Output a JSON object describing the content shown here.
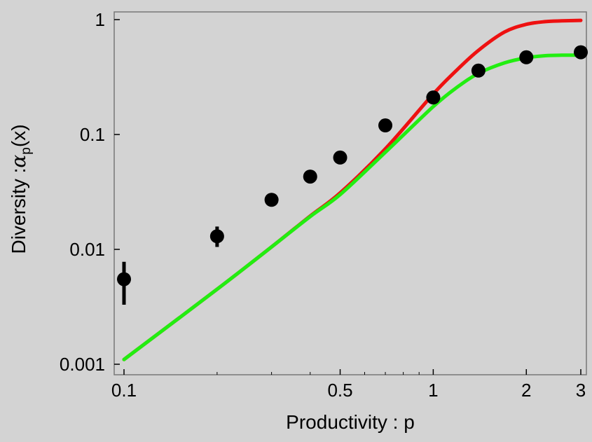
{
  "chart_data": {
    "type": "scatter",
    "title": "",
    "xlabel": "Productivity : p",
    "ylabel": {
      "prefix": "Diversity :",
      "symbol": "α",
      "subscript": "p",
      "suffix": "(x)"
    },
    "xscale": "log",
    "yscale": "log",
    "xlim": [
      0.1,
      3
    ],
    "ylim": [
      0.001,
      1
    ],
    "xticks": [
      {
        "value": 0.1,
        "label": "0.1"
      },
      {
        "value": 0.5,
        "label": "0.5"
      },
      {
        "value": 1,
        "label": "1"
      },
      {
        "value": 2,
        "label": "2"
      },
      {
        "value": 3,
        "label": "3"
      }
    ],
    "yticks": [
      {
        "value": 0.001,
        "label": "0.001"
      },
      {
        "value": 0.01,
        "label": "0.01"
      },
      {
        "value": 0.1,
        "label": "0.1"
      },
      {
        "value": 1,
        "label": "1"
      }
    ],
    "grid": false,
    "series": [
      {
        "kind": "points",
        "color": "#000000",
        "points": [
          {
            "x": 0.1,
            "y": 0.0055,
            "ylow": 0.0033,
            "yhigh": 0.0078
          },
          {
            "x": 0.2,
            "y": 0.013,
            "ylow": 0.0105,
            "yhigh": 0.0158
          },
          {
            "x": 0.3,
            "y": 0.027,
            "ylow": 0.0245,
            "yhigh": 0.03
          },
          {
            "x": 0.4,
            "y": 0.043,
            "ylow": 0.041,
            "yhigh": 0.045
          },
          {
            "x": 0.5,
            "y": 0.063,
            "ylow": 0.061,
            "yhigh": 0.065
          },
          {
            "x": 0.7,
            "y": 0.12,
            "ylow": 0.118,
            "yhigh": 0.122
          },
          {
            "x": 1.0,
            "y": 0.21,
            "ylow": 0.207,
            "yhigh": 0.213
          },
          {
            "x": 1.4,
            "y": 0.36,
            "ylow": 0.355,
            "yhigh": 0.365
          },
          {
            "x": 2.0,
            "y": 0.47,
            "ylow": 0.465,
            "yhigh": 0.475
          },
          {
            "x": 3.0,
            "y": 0.52,
            "ylow": 0.515,
            "yhigh": 0.525
          }
        ]
      },
      {
        "kind": "line",
        "color": "#ee1111",
        "x": [
          0.1,
          0.2,
          0.3,
          0.4,
          0.5,
          0.7,
          1.0,
          1.2,
          1.4,
          1.7,
          2.0,
          2.3,
          2.6,
          3.0
        ],
        "y": [
          0.0011,
          0.0045,
          0.0105,
          0.0195,
          0.031,
          0.075,
          0.225,
          0.37,
          0.54,
          0.78,
          0.91,
          0.96,
          0.975,
          0.985
        ]
      },
      {
        "kind": "line",
        "color": "#22ee11",
        "x": [
          0.1,
          0.2,
          0.3,
          0.4,
          0.5,
          0.7,
          1.0,
          1.2,
          1.4,
          1.7,
          2.0,
          2.3,
          2.6,
          3.0
        ],
        "y": [
          0.0011,
          0.0045,
          0.0105,
          0.0193,
          0.03,
          0.07,
          0.175,
          0.26,
          0.34,
          0.42,
          0.465,
          0.485,
          0.49,
          0.49
        ]
      }
    ]
  }
}
